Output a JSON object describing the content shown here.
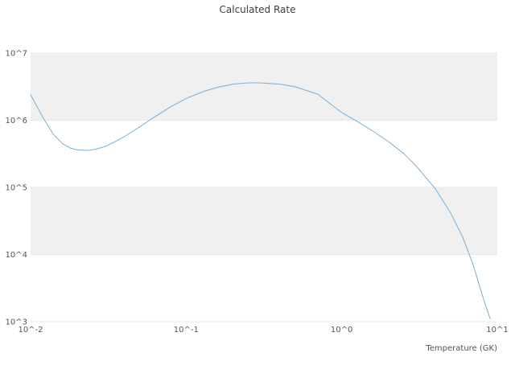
{
  "title": "Calculated Rate",
  "xlabel": "Temperature (GK)",
  "colors": {
    "line": "#7aaed6",
    "band": "#f0f0f0",
    "grid": "#e7e7e7",
    "background": "#ffffff"
  },
  "chart_data": {
    "type": "line",
    "title": "Calculated Rate",
    "xlabel": "Temperature (GK)",
    "ylabel": "",
    "xscale": "log",
    "yscale": "log",
    "xlim": [
      0.01,
      10
    ],
    "ylim": [
      1000,
      10000000
    ],
    "x_tick_values": [
      0.01,
      0.1,
      1,
      10
    ],
    "x_tick_labels": [
      "10^-2",
      "10^-1",
      "10^0",
      "10^1"
    ],
    "y_tick_values": [
      1000,
      10000,
      100000,
      1000000,
      10000000
    ],
    "y_tick_labels": [
      "10^3",
      "10^4",
      "10^5",
      "10^6",
      "10^7"
    ],
    "shaded_bands": [
      [
        1000000,
        10000000
      ],
      [
        10000,
        100000
      ]
    ],
    "legend": "none",
    "grid": "horizontal-decades",
    "series": [
      {
        "name": "calculated-rate",
        "x": [
          0.01,
          0.012,
          0.014,
          0.016,
          0.018,
          0.02,
          0.023,
          0.026,
          0.03,
          0.035,
          0.04,
          0.05,
          0.06,
          0.08,
          0.1,
          0.13,
          0.16,
          0.2,
          0.25,
          0.3,
          0.4,
          0.5,
          0.7,
          1.0,
          1.3,
          1.6,
          2.0,
          2.5,
          3.0,
          4.0,
          5.0,
          6.0,
          7.0,
          8.0,
          9.0
        ],
        "y": [
          2400000,
          1100000,
          620000,
          450000,
          385000,
          362000,
          355000,
          368000,
          405000,
          480000,
          570000,
          790000,
          1050000,
          1600000,
          2100000,
          2700000,
          3100000,
          3450000,
          3600000,
          3600000,
          3450000,
          3150000,
          2450000,
          1300000,
          920000,
          680000,
          480000,
          320000,
          210000,
          95000,
          42000,
          18000,
          7000,
          2500,
          1100
        ]
      }
    ]
  }
}
